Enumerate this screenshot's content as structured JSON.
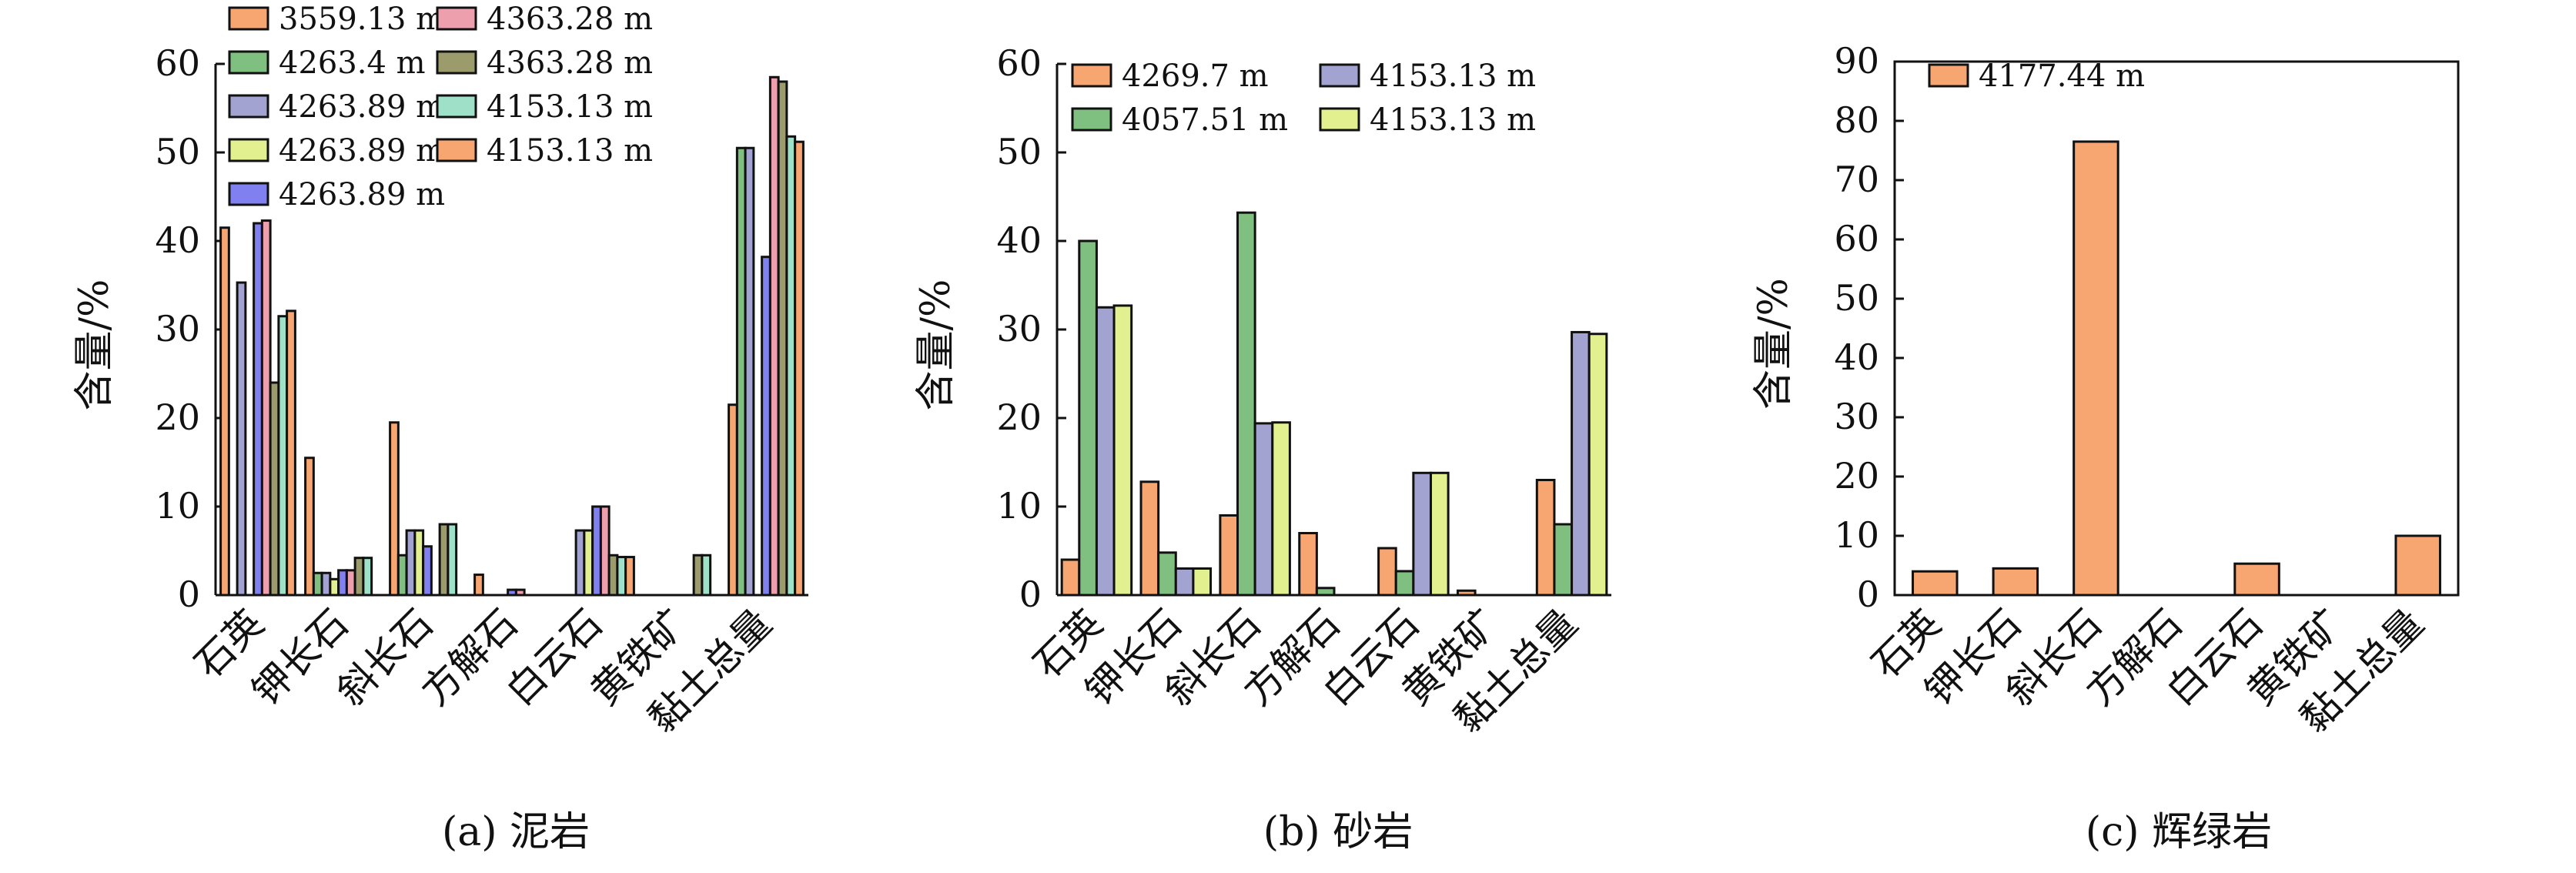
{
  "chart_data": [
    {
      "type": "bar",
      "caption": "(a) 泥岩",
      "ylabel": "含量/%",
      "ylim": [
        0,
        60
      ],
      "yticks": [
        0,
        10,
        20,
        30,
        40,
        50,
        60
      ],
      "categories": [
        "石英",
        "钾长石",
        "斜长石",
        "方解石",
        "白云石",
        "黄铁矿",
        "黏土总量"
      ],
      "legend_columns": 2,
      "series": [
        {
          "name": "3559.13 m",
          "color": "#f7a671",
          "values": [
            41.5,
            15.5,
            19.5,
            2.3,
            0,
            0,
            21.5
          ]
        },
        {
          "name": "4263.4 m",
          "color": "#7fbf7f",
          "values": [
            0,
            2.5,
            4.5,
            0,
            0,
            0,
            50.5
          ]
        },
        {
          "name": "4263.89 m",
          "color": "#a3a3d1",
          "values": [
            35.3,
            2.5,
            7.3,
            0,
            7.3,
            0,
            50.5
          ]
        },
        {
          "name": "4263.89 m",
          "color": "#e2f08f",
          "values": [
            0,
            1.8,
            7.3,
            0,
            7.3,
            0,
            0
          ]
        },
        {
          "name": "4263.89 m",
          "color": "#8080f0",
          "values": [
            42.0,
            2.8,
            5.5,
            0.6,
            10.0,
            0,
            38.2
          ]
        },
        {
          "name": "4363.28 m",
          "color": "#ee9fae",
          "values": [
            42.3,
            2.8,
            0,
            0.6,
            10.0,
            0,
            58.5
          ]
        },
        {
          "name": "4363.28 m",
          "color": "#9b9b6b",
          "values": [
            24.0,
            4.2,
            8.0,
            0,
            4.5,
            4.5,
            58.0
          ]
        },
        {
          "name": "4153.13 m",
          "color": "#9fe0c8",
          "values": [
            31.5,
            4.2,
            8.0,
            0,
            4.3,
            4.5,
            51.8
          ]
        },
        {
          "name": "4153.13 m",
          "color": "#f7a671",
          "values": [
            32.1,
            0,
            0,
            0,
            4.3,
            0,
            51.2
          ]
        }
      ]
    },
    {
      "type": "bar",
      "caption": "(b) 砂岩",
      "ylabel": "含量/%",
      "ylim": [
        0,
        60
      ],
      "yticks": [
        0,
        10,
        20,
        30,
        40,
        50,
        60
      ],
      "categories": [
        "石英",
        "钾长石",
        "斜长石",
        "方解石",
        "白云石",
        "黄铁矿",
        "黏土总量"
      ],
      "legend_columns": 2,
      "series": [
        {
          "name": "4269.7 m",
          "color": "#f7a671",
          "values": [
            4.0,
            12.8,
            9.0,
            7.0,
            5.3,
            0.5,
            13.0
          ]
        },
        {
          "name": "4057.51 m",
          "color": "#7fbf7f",
          "values": [
            40.0,
            4.8,
            43.2,
            0.8,
            2.7,
            0,
            8.0
          ]
        },
        {
          "name": "4153.13 m",
          "color": "#a3a3d1",
          "values": [
            32.5,
            3.0,
            19.4,
            0,
            13.8,
            0,
            29.7
          ]
        },
        {
          "name": "4153.13 m",
          "color": "#e2f08f",
          "values": [
            32.7,
            3.0,
            19.5,
            0,
            13.8,
            0,
            29.5
          ]
        }
      ]
    },
    {
      "type": "bar",
      "caption": "(c) 辉绿岩",
      "ylabel": "含量/%",
      "ylim": [
        0,
        90
      ],
      "yticks": [
        0,
        10,
        20,
        30,
        40,
        50,
        60,
        70,
        80,
        90
      ],
      "categories": [
        "石英",
        "钾长石",
        "斜长石",
        "方解石",
        "白云石",
        "黄铁矿",
        "黏土总量"
      ],
      "legend_columns": 1,
      "series": [
        {
          "name": "4177.44 m",
          "color": "#f7a671",
          "values": [
            4.0,
            4.5,
            76.5,
            0,
            5.3,
            0,
            10.0
          ]
        }
      ]
    }
  ]
}
